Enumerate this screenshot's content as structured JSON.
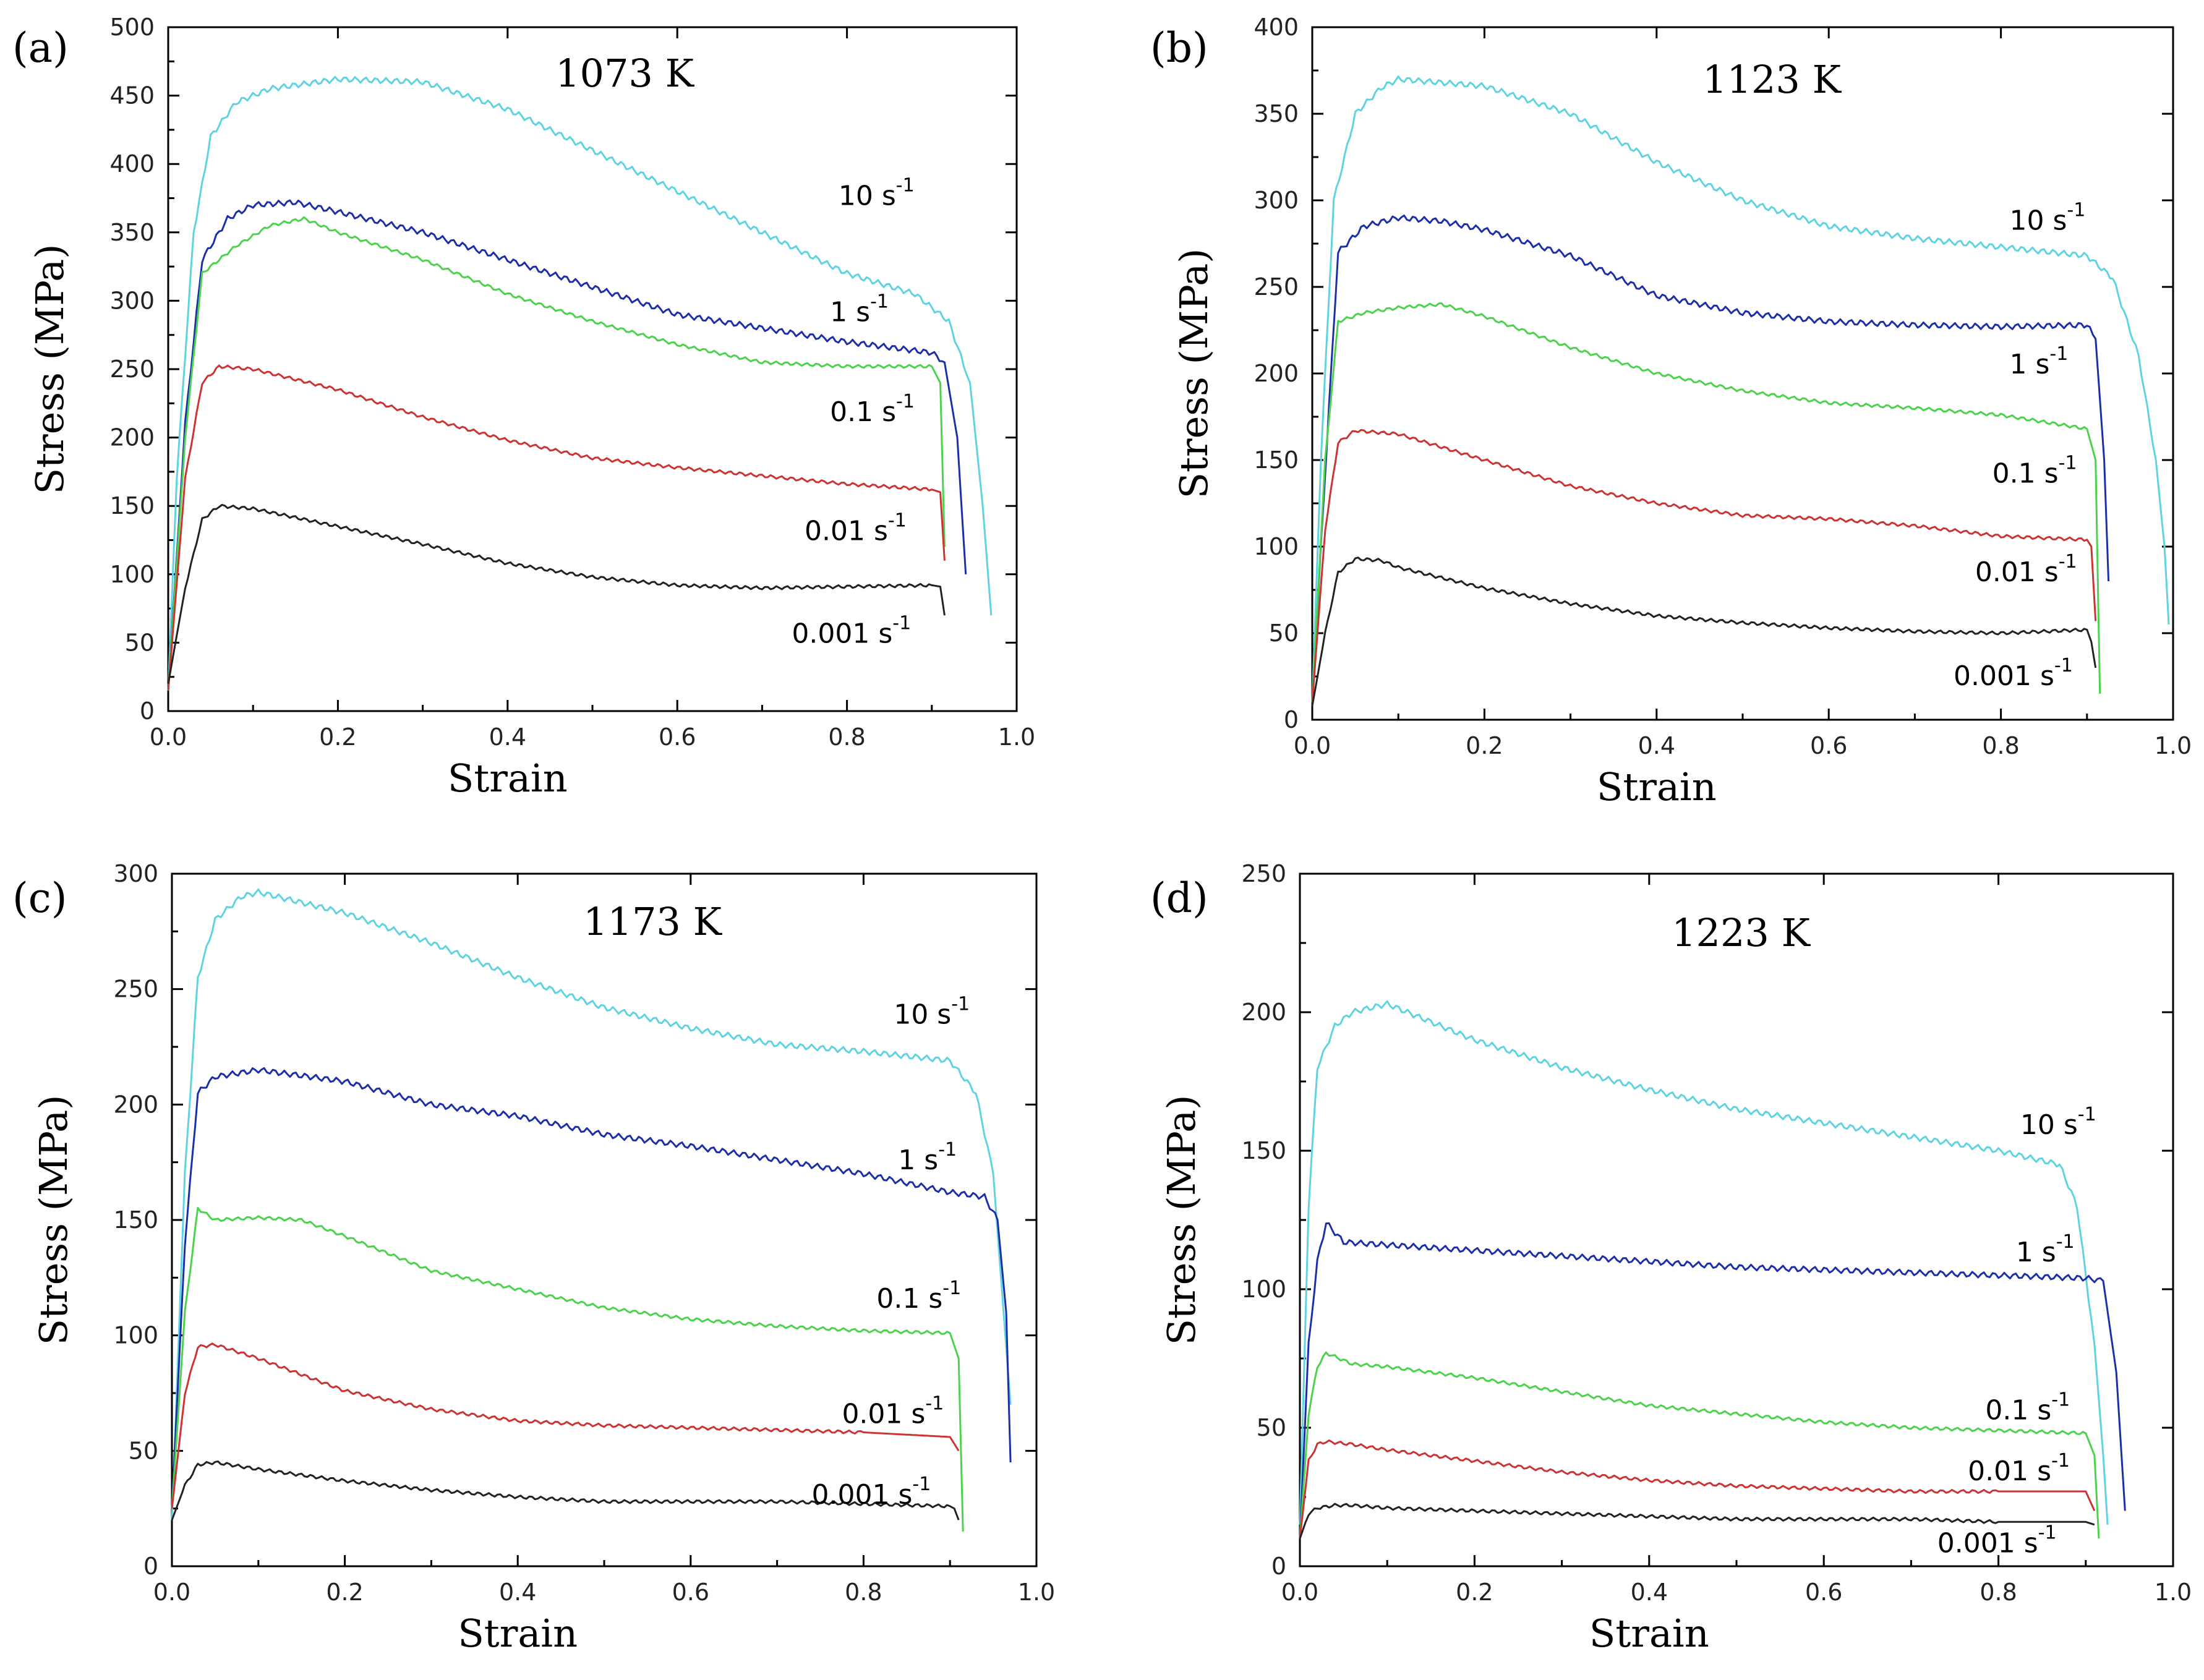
{
  "chart_data": [
    {
      "type": "line",
      "panel_label": "(a)",
      "title": "1073 K",
      "xlabel": "Strain",
      "ylabel": "Stress (MPa)",
      "xlim": [
        0,
        1.0
      ],
      "ylim": [
        0,
        500
      ],
      "xticks": [
        "0.0",
        "0.2",
        "0.4",
        "0.6",
        "0.8",
        "1.0"
      ],
      "yticks": [
        "0",
        "50",
        "100",
        "150",
        "200",
        "250",
        "300",
        "350",
        "400",
        "450",
        "500"
      ],
      "series": [
        {
          "name": "10 s-1",
          "label": "10 s",
          "sup": "-1",
          "color": "#5fd3e0",
          "label_at": [
            0.79,
            370
          ],
          "x": [
            0,
            0.01,
            0.03,
            0.05,
            0.08,
            0.12,
            0.2,
            0.3,
            0.4,
            0.5,
            0.6,
            0.7,
            0.8,
            0.88,
            0.92,
            0.945,
            0.96,
            0.97
          ],
          "y": [
            15,
            170,
            350,
            420,
            445,
            455,
            462,
            460,
            440,
            410,
            380,
            350,
            320,
            305,
            285,
            240,
            150,
            70
          ]
        },
        {
          "name": "1 s-1",
          "label": "1 s",
          "sup": "-1",
          "color": "#1c2fa8",
          "label_at": [
            0.78,
            285
          ],
          "x": [
            0,
            0.02,
            0.04,
            0.07,
            0.1,
            0.15,
            0.2,
            0.3,
            0.4,
            0.5,
            0.6,
            0.7,
            0.8,
            0.9,
            0.915,
            0.93,
            0.94
          ],
          "y": [
            15,
            210,
            330,
            360,
            370,
            372,
            365,
            350,
            330,
            310,
            290,
            280,
            270,
            262,
            255,
            200,
            100
          ]
        },
        {
          "name": "0.1 s-1",
          "label": "0.1 s",
          "sup": "-1",
          "color": "#4cd24c",
          "label_at": [
            0.78,
            212
          ],
          "x": [
            0,
            0.02,
            0.04,
            0.08,
            0.12,
            0.16,
            0.2,
            0.3,
            0.4,
            0.5,
            0.6,
            0.7,
            0.8,
            0.9,
            0.91,
            0.915
          ],
          "y": [
            15,
            200,
            320,
            340,
            355,
            360,
            350,
            330,
            305,
            285,
            268,
            255,
            252,
            252,
            240,
            120
          ]
        },
        {
          "name": "0.01 s-1",
          "label": "0.01 s",
          "sup": "-1",
          "color": "#cc3333",
          "label_at": [
            0.75,
            125
          ],
          "x": [
            0,
            0.02,
            0.04,
            0.06,
            0.1,
            0.2,
            0.3,
            0.4,
            0.5,
            0.6,
            0.7,
            0.8,
            0.9,
            0.91,
            0.915
          ],
          "y": [
            15,
            170,
            240,
            252,
            250,
            235,
            215,
            198,
            185,
            178,
            172,
            166,
            162,
            160,
            110
          ]
        },
        {
          "name": "0.001 s-1",
          "label": "0.001 s",
          "sup": "-1",
          "color": "#222222",
          "label_at": [
            0.735,
            50
          ],
          "x": [
            0,
            0.02,
            0.04,
            0.06,
            0.1,
            0.2,
            0.3,
            0.4,
            0.5,
            0.6,
            0.7,
            0.8,
            0.9,
            0.91,
            0.915
          ],
          "y": [
            20,
            90,
            140,
            150,
            148,
            135,
            122,
            108,
            98,
            92,
            90,
            91,
            92,
            91,
            70
          ]
        }
      ]
    },
    {
      "type": "line",
      "panel_label": "(b)",
      "title": "1123 K",
      "xlabel": "Strain",
      "ylabel": "Stress  (MPa)",
      "xlim": [
        0,
        1.0
      ],
      "ylim": [
        0,
        400
      ],
      "xticks": [
        "0.0",
        "0.2",
        "0.4",
        "0.6",
        "0.8",
        "1.0"
      ],
      "yticks": [
        "0",
        "50",
        "100",
        "150",
        "200",
        "250",
        "300",
        "350",
        "400"
      ],
      "series": [
        {
          "name": "10 s-1",
          "label": "10 s",
          "sup": "-1",
          "color": "#5fd3e0",
          "label_at": [
            0.81,
            283
          ],
          "x": [
            0,
            0.01,
            0.025,
            0.05,
            0.08,
            0.1,
            0.2,
            0.3,
            0.4,
            0.5,
            0.6,
            0.7,
            0.8,
            0.9,
            0.93,
            0.96,
            0.98,
            0.99,
            0.995
          ],
          "y": [
            10,
            150,
            300,
            350,
            365,
            370,
            366,
            350,
            322,
            300,
            285,
            278,
            273,
            268,
            255,
            210,
            150,
            100,
            55
          ]
        },
        {
          "name": "1 s-1",
          "label": "1 s",
          "sup": "-1",
          "color": "#1c2fa8",
          "label_at": [
            0.81,
            200
          ],
          "x": [
            0,
            0.01,
            0.03,
            0.06,
            0.1,
            0.15,
            0.2,
            0.3,
            0.4,
            0.5,
            0.6,
            0.7,
            0.8,
            0.9,
            0.91,
            0.92,
            0.925
          ],
          "y": [
            8,
            100,
            270,
            285,
            290,
            288,
            283,
            268,
            245,
            235,
            230,
            228,
            227,
            228,
            220,
            150,
            80
          ]
        },
        {
          "name": "0.1 s-1",
          "label": "0.1 s",
          "sup": "-1",
          "color": "#4cd24c",
          "label_at": [
            0.79,
            137
          ],
          "x": [
            0,
            0.015,
            0.03,
            0.06,
            0.1,
            0.15,
            0.2,
            0.3,
            0.4,
            0.5,
            0.6,
            0.7,
            0.8,
            0.9,
            0.91,
            0.915
          ],
          "y": [
            10,
            150,
            230,
            235,
            238,
            240,
            233,
            215,
            200,
            190,
            183,
            180,
            176,
            168,
            150,
            15
          ]
        },
        {
          "name": "0.01 s-1",
          "label": "0.01 s",
          "sup": "-1",
          "color": "#cc3333",
          "label_at": [
            0.77,
            80
          ],
          "x": [
            0,
            0.015,
            0.03,
            0.05,
            0.1,
            0.2,
            0.3,
            0.4,
            0.5,
            0.6,
            0.7,
            0.8,
            0.9,
            0.905,
            0.91
          ],
          "y": [
            10,
            110,
            160,
            167,
            165,
            150,
            135,
            125,
            118,
            116,
            112,
            106,
            104,
            100,
            57
          ]
        },
        {
          "name": "0.001 s-1",
          "label": "0.001 s",
          "sup": "-1",
          "color": "#222222",
          "label_at": [
            0.745,
            20
          ],
          "x": [
            0,
            0.015,
            0.03,
            0.05,
            0.08,
            0.1,
            0.2,
            0.3,
            0.4,
            0.5,
            0.6,
            0.7,
            0.8,
            0.9,
            0.905,
            0.91
          ],
          "y": [
            8,
            50,
            85,
            93,
            92,
            88,
            76,
            67,
            60,
            56,
            53,
            51,
            50,
            52,
            45,
            30
          ]
        }
      ]
    },
    {
      "type": "line",
      "panel_label": "(c)",
      "title": "1173 K",
      "xlabel": "Strain",
      "ylabel": "Stress  (MPa)",
      "xlim": [
        0,
        1.0
      ],
      "ylim": [
        0,
        300
      ],
      "xticks": [
        "0.0",
        "0.2",
        "0.4",
        "0.6",
        "0.8",
        "1.0"
      ],
      "yticks": [
        "0",
        "50",
        "100",
        "150",
        "200",
        "250",
        "300"
      ],
      "series": [
        {
          "name": "10 s-1",
          "label": "10 s",
          "sup": "-1",
          "color": "#5fd3e0",
          "label_at": [
            0.835,
            235
          ],
          "x": [
            0,
            0.015,
            0.03,
            0.05,
            0.08,
            0.1,
            0.2,
            0.3,
            0.4,
            0.5,
            0.6,
            0.7,
            0.8,
            0.9,
            0.93,
            0.95,
            0.96,
            0.97
          ],
          "y": [
            20,
            170,
            255,
            280,
            290,
            292,
            283,
            270,
            255,
            242,
            233,
            226,
            223,
            219,
            205,
            170,
            120,
            70
          ]
        },
        {
          "name": "1 s-1",
          "label": "1 s",
          "sup": "-1",
          "color": "#1c2fa8",
          "label_at": [
            0.84,
            172
          ],
          "x": [
            0,
            0.015,
            0.03,
            0.05,
            0.1,
            0.2,
            0.3,
            0.4,
            0.5,
            0.6,
            0.7,
            0.8,
            0.9,
            0.94,
            0.955,
            0.965,
            0.97
          ],
          "y": [
            25,
            140,
            205,
            212,
            215,
            210,
            200,
            195,
            187,
            182,
            176,
            170,
            162,
            160,
            150,
            110,
            45
          ]
        },
        {
          "name": "0.1 s-1",
          "label": "0.1 s",
          "sup": "-1",
          "color": "#4cd24c",
          "label_at": [
            0.815,
            112
          ],
          "x": [
            0,
            0.015,
            0.03,
            0.05,
            0.1,
            0.15,
            0.2,
            0.3,
            0.4,
            0.5,
            0.6,
            0.7,
            0.8,
            0.9,
            0.91,
            0.915
          ],
          "y": [
            25,
            110,
            155,
            150,
            151,
            150,
            143,
            128,
            120,
            112,
            107,
            104,
            102,
            101,
            90,
            15
          ]
        },
        {
          "name": "0.01 s-1",
          "label": "0.01 s",
          "sup": "-1",
          "color": "#cc3333",
          "label_at": [
            0.775,
            62
          ],
          "x": [
            0,
            0.015,
            0.03,
            0.05,
            0.1,
            0.2,
            0.3,
            0.4,
            0.5,
            0.6,
            0.7,
            0.8,
            0.9,
            0.91
          ],
          "y": [
            25,
            75,
            95,
            96,
            90,
            76,
            68,
            63,
            61,
            60,
            59,
            58,
            56,
            50
          ]
        },
        {
          "name": "0.001 s-1",
          "label": "0.001 s",
          "sup": "-1",
          "color": "#222222",
          "label_at": [
            0.74,
            27
          ],
          "x": [
            0,
            0.015,
            0.03,
            0.05,
            0.1,
            0.2,
            0.3,
            0.4,
            0.5,
            0.6,
            0.7,
            0.8,
            0.9,
            0.905,
            0.91
          ],
          "y": [
            20,
            35,
            44,
            45,
            42,
            37,
            33,
            30,
            28,
            28,
            28,
            27,
            26,
            25,
            20
          ]
        }
      ]
    },
    {
      "type": "line",
      "panel_label": "(d)",
      "title": "1223 K",
      "xlabel": "Strain",
      "ylabel": "Stress  (MPa)",
      "xlim": [
        0,
        1.0
      ],
      "ylim": [
        0,
        250
      ],
      "xticks": [
        "0.0",
        "0.2",
        "0.4",
        "0.6",
        "0.8",
        "1.0"
      ],
      "yticks": [
        "0",
        "50",
        "100",
        "150",
        "200",
        "250"
      ],
      "series": [
        {
          "name": "10 s-1",
          "label": "10 s",
          "sup": "-1",
          "color": "#5fd3e0",
          "label_at": [
            0.825,
            156
          ],
          "x": [
            0,
            0.01,
            0.02,
            0.04,
            0.06,
            0.1,
            0.2,
            0.3,
            0.4,
            0.5,
            0.6,
            0.7,
            0.8,
            0.87,
            0.89,
            0.91,
            0.92,
            0.925
          ],
          "y": [
            15,
            130,
            180,
            195,
            200,
            203,
            190,
            180,
            172,
            165,
            160,
            155,
            150,
            145,
            130,
            80,
            40,
            15
          ]
        },
        {
          "name": "1 s-1",
          "label": "1 s",
          "sup": "-1",
          "color": "#1c2fa8",
          "label_at": [
            0.82,
            110
          ],
          "x": [
            0,
            0.01,
            0.02,
            0.03,
            0.05,
            0.1,
            0.2,
            0.3,
            0.4,
            0.5,
            0.6,
            0.7,
            0.8,
            0.9,
            0.92,
            0.935,
            0.945
          ],
          "y": [
            10,
            80,
            110,
            124,
            117,
            116,
            114,
            112,
            110,
            108,
            107,
            106,
            105,
            104,
            103,
            70,
            20
          ]
        },
        {
          "name": "0.1 s-1",
          "label": "0.1 s",
          "sup": "-1",
          "color": "#4cd24c",
          "label_at": [
            0.785,
            53
          ],
          "x": [
            0,
            0.01,
            0.02,
            0.03,
            0.06,
            0.1,
            0.2,
            0.3,
            0.4,
            0.5,
            0.6,
            0.7,
            0.8,
            0.9,
            0.91,
            0.915
          ],
          "y": [
            10,
            55,
            72,
            77,
            73,
            72,
            68,
            63,
            58,
            55,
            52,
            50,
            49,
            48,
            40,
            10
          ]
        },
        {
          "name": "0.01 s-1",
          "label": "0.01 s",
          "sup": "-1",
          "color": "#cc3333",
          "label_at": [
            0.765,
            31
          ],
          "x": [
            0,
            0.01,
            0.02,
            0.03,
            0.06,
            0.1,
            0.2,
            0.3,
            0.4,
            0.5,
            0.6,
            0.7,
            0.8,
            0.9,
            0.91
          ],
          "y": [
            10,
            38,
            44,
            45,
            44,
            42,
            38,
            34,
            31,
            29,
            28,
            27,
            27,
            27,
            20
          ]
        },
        {
          "name": "0.001 s-1",
          "label": "0.001 s",
          "sup": "-1",
          "color": "#222222",
          "label_at": [
            0.73,
            5
          ],
          "x": [
            0,
            0.01,
            0.02,
            0.04,
            0.06,
            0.1,
            0.2,
            0.3,
            0.4,
            0.5,
            0.6,
            0.7,
            0.8,
            0.9,
            0.91
          ],
          "y": [
            10,
            19,
            21,
            22,
            22,
            21,
            20,
            19,
            18,
            17,
            17,
            17,
            16,
            16,
            15
          ]
        }
      ]
    }
  ]
}
